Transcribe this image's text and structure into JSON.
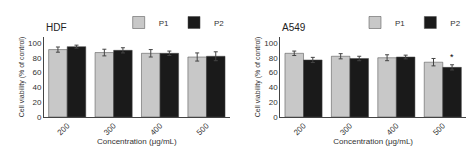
{
  "chart_data": [
    {
      "type": "bar",
      "title": "HDF",
      "categories": [
        "200",
        "300",
        "400",
        "500"
      ],
      "series": [
        {
          "name": "P1",
          "color": "#c8c8c8",
          "values": [
            91,
            87,
            86,
            81
          ],
          "errors": [
            3.5,
            4.5,
            5.0,
            5.5
          ]
        },
        {
          "name": "P2",
          "color": "#1a1a1a",
          "values": [
            95,
            90,
            86,
            82
          ],
          "errors": [
            2.0,
            3.5,
            3.0,
            6.0
          ]
        }
      ],
      "xlabel": "Concentration (μg/mL)",
      "ylabel": "Cell viability (% of control)",
      "ylim": [
        0,
        108
      ],
      "yticks": [
        0,
        20,
        40,
        60,
        80,
        100
      ],
      "grid": false,
      "legend": "upper right"
    },
    {
      "type": "bar",
      "title": "A549",
      "categories": [
        "200",
        "300",
        "400",
        "500"
      ],
      "series": [
        {
          "name": "P1",
          "color": "#c8c8c8",
          "values": [
            86,
            82,
            80,
            74
          ],
          "errors": [
            3.0,
            3.5,
            4.0,
            5.0
          ]
        },
        {
          "name": "P2",
          "color": "#1a1a1a",
          "values": [
            77,
            79,
            81,
            67
          ],
          "errors": [
            3.5,
            3.0,
            2.5,
            3.5
          ]
        }
      ],
      "xlabel": "Concentration (μg/mL)",
      "ylabel": "Cell viability (% of control)",
      "ylim": [
        0,
        108
      ],
      "yticks": [
        0,
        20,
        40,
        60,
        80,
        100
      ],
      "grid": false,
      "legend": "upper right",
      "annotations": [
        {
          "text": "*",
          "category": "500",
          "series": "P2"
        }
      ]
    }
  ]
}
